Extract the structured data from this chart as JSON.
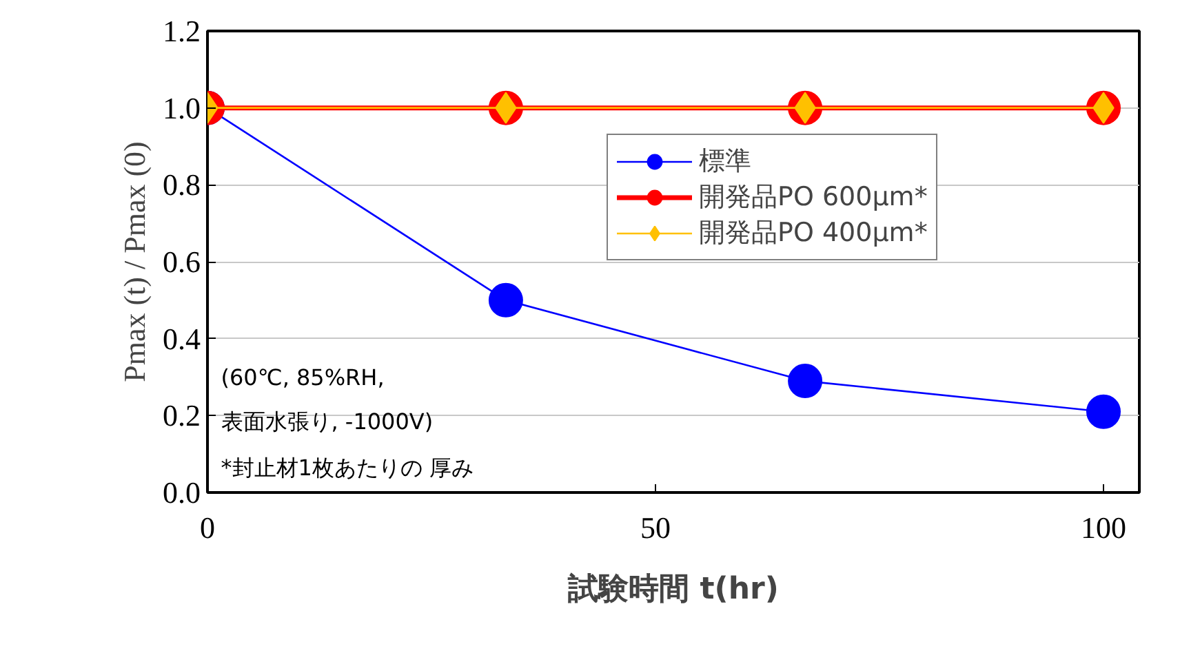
{
  "chart_data": {
    "type": "line",
    "xlabel": "試験時間 t(hr)",
    "ylabel": "Pmax (t) / Pmax (0)",
    "xlim": [
      0,
      104
    ],
    "xticks": [
      0,
      50,
      100
    ],
    "ylim": [
      0,
      1.2
    ],
    "yticks": [
      {
        "value": 0,
        "label": "0.0"
      },
      {
        "value": 0.2,
        "label": "0.2"
      },
      {
        "value": 0.4,
        "label": "0.4"
      },
      {
        "value": 0.6,
        "label": "0.6"
      },
      {
        "value": 0.8,
        "label": "0.8"
      },
      {
        "value": 1,
        "label": "1.0"
      },
      {
        "value": 1.2,
        "label": "1.2"
      }
    ],
    "grid": "y",
    "legend": "top right",
    "series": [
      {
        "name": "標準",
        "color": "#0000ff",
        "x": [
          0,
          33.3,
          66.7,
          100
        ],
        "values": [
          1.0,
          0.5,
          0.29,
          0.21
        ],
        "marker": "circle"
      },
      {
        "name": "開発品PO 600μm*",
        "color": "#ff0000",
        "x": [
          0,
          33.3,
          66.7,
          100
        ],
        "values": [
          1.0,
          1.0,
          1.0,
          1.0
        ],
        "marker": "circle"
      },
      {
        "name": "開発品PO 400μm*",
        "color": "#ffc000",
        "x": [
          0,
          33.3,
          66.7,
          100
        ],
        "values": [
          1.0,
          1.0,
          1.0,
          1.0
        ],
        "marker": "diamond"
      }
    ],
    "annotations": [
      "(60℃, 85%RH,",
      " 表面水張り, -1000V)",
      "*封止材1枚あたりの 厚み"
    ]
  }
}
